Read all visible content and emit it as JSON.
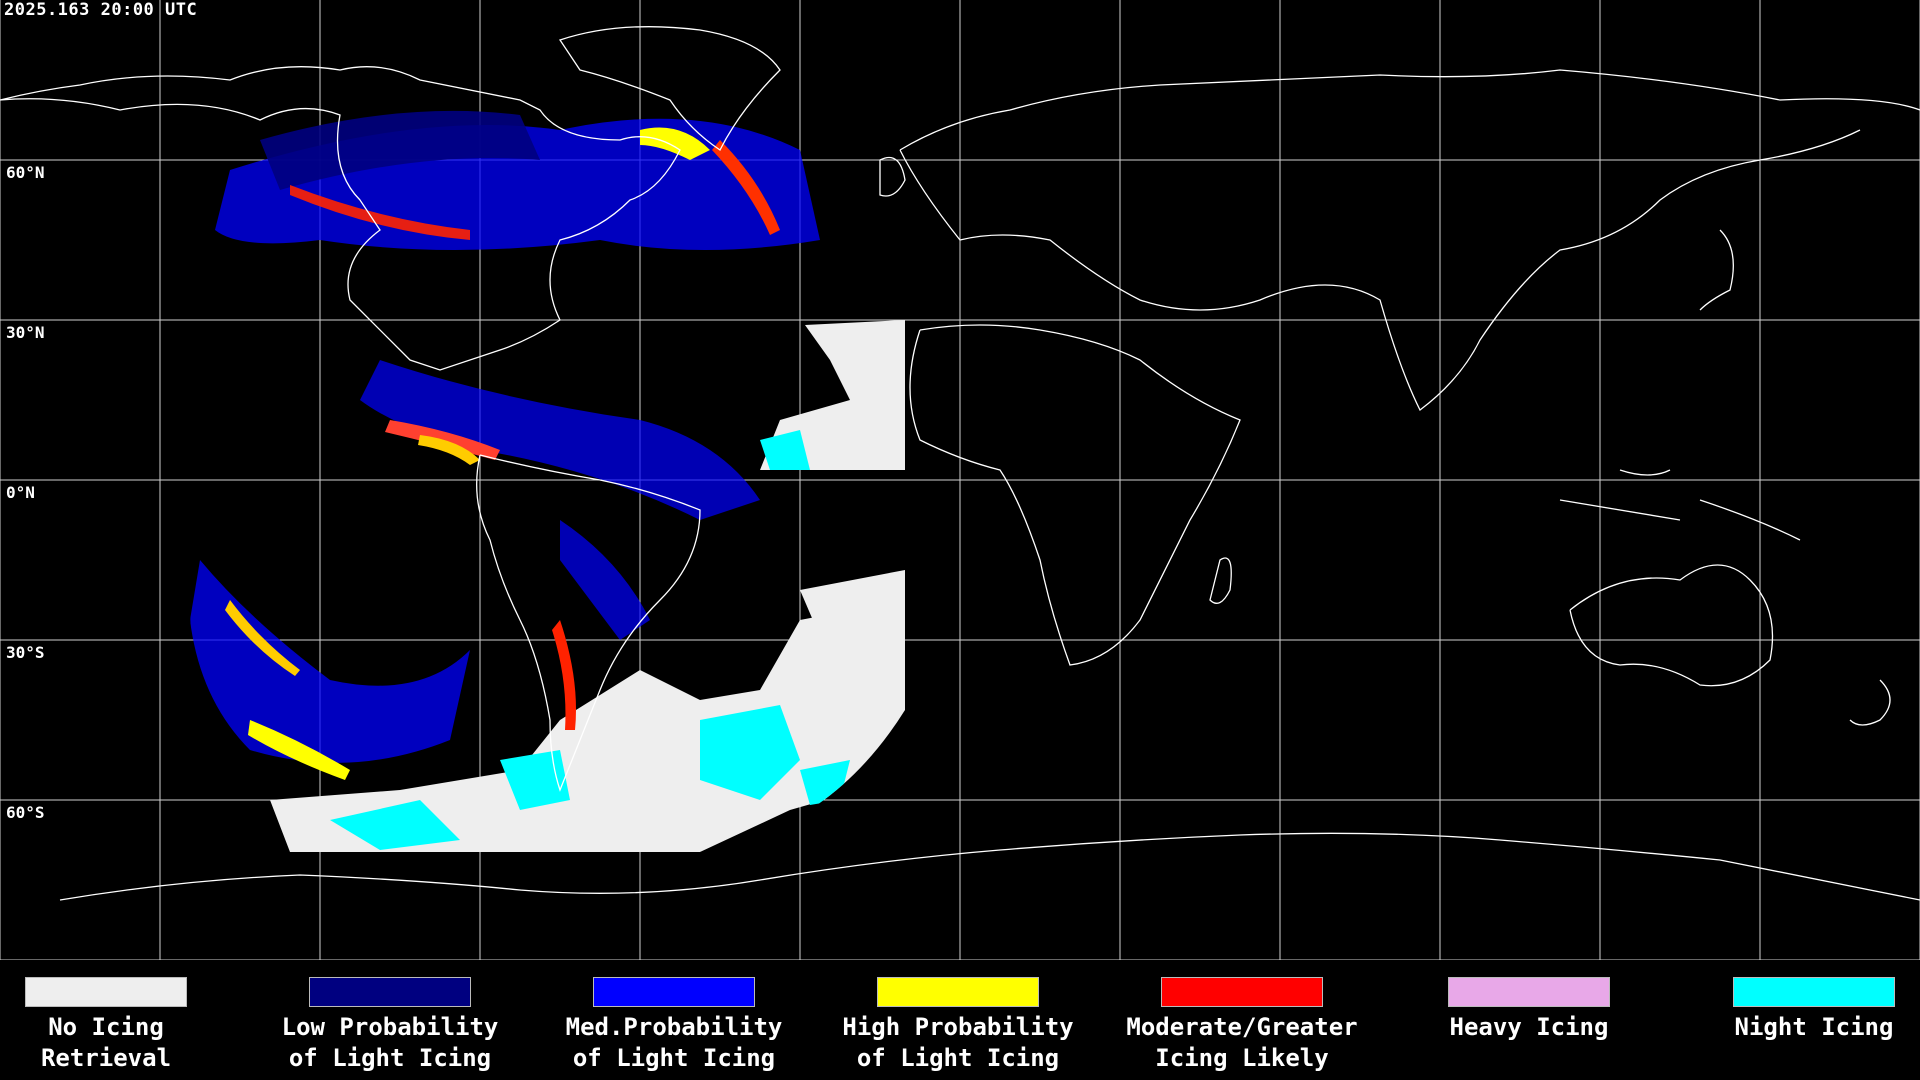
{
  "timestamp": "2025.163 20:00 UTC",
  "lat_labels": [
    "60°N",
    "30°N",
    "0°N",
    "30°S",
    "60°S"
  ],
  "colors": {
    "background": "#000000",
    "grid": "#d0d0d0",
    "coastline": "#ffffff",
    "no_icing": "#eeeeee",
    "low_prob": "#000080",
    "med_prob": "#0000ff",
    "high_prob": "#ffff00",
    "moderate": "#ff0000",
    "heavy": "#e8a8e8",
    "night": "#00ffff"
  },
  "legend": [
    {
      "line1": "No Icing",
      "line2": "Retrieval",
      "color": "#eeeeee"
    },
    {
      "line1": "Low Probability",
      "line2": "of Light Icing",
      "color": "#000080"
    },
    {
      "line1": "Med.Probability",
      "line2": "of Light Icing",
      "color": "#0000ff"
    },
    {
      "line1": "High Probability",
      "line2": "of Light Icing",
      "color": "#ffff00"
    },
    {
      "line1": "Moderate/Greater",
      "line2": "Icing Likely",
      "color": "#ff0000"
    },
    {
      "line1": "Heavy Icing",
      "line2": "",
      "color": "#e8a8e8"
    },
    {
      "line1": "Night Icing",
      "line2": "",
      "color": "#00ffff"
    }
  ]
}
